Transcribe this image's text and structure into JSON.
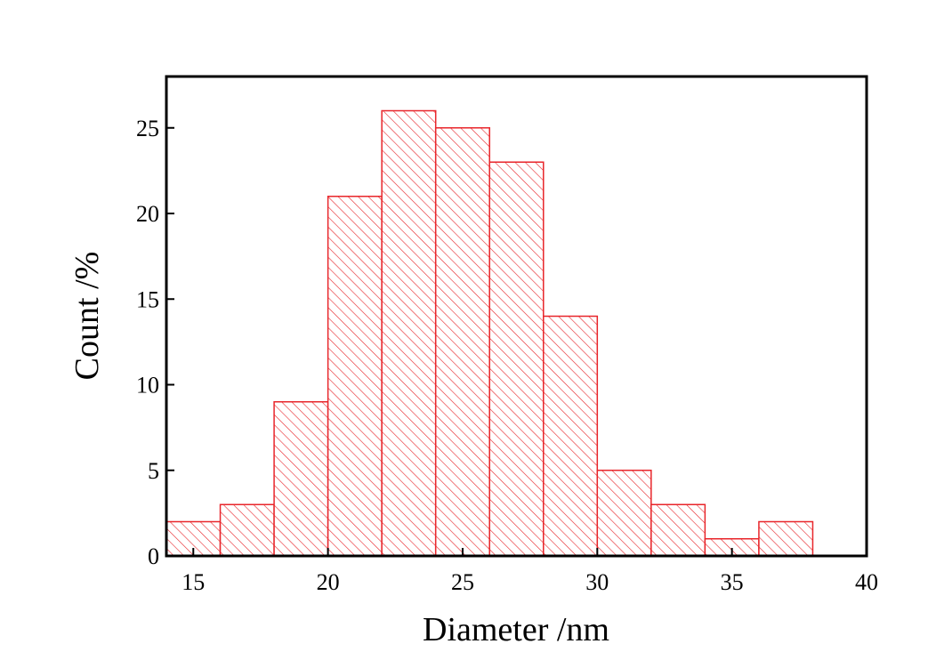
{
  "chart_data": {
    "type": "histogram",
    "x_label": "Diameter /nm",
    "y_label": "Count /%",
    "bins": [
      14,
      16,
      18,
      20,
      22,
      24,
      26,
      28,
      30,
      32,
      34,
      36,
      38
    ],
    "values": [
      2,
      3,
      9,
      21,
      26,
      25,
      23,
      14,
      5,
      3,
      1,
      2
    ],
    "color": "#e8262b",
    "xlim": [
      14,
      40
    ],
    "xticks": [
      15,
      20,
      25,
      30,
      35,
      40
    ],
    "ylim": [
      0,
      28
    ],
    "yticks": [
      0,
      5,
      10,
      15,
      20,
      25
    ]
  }
}
